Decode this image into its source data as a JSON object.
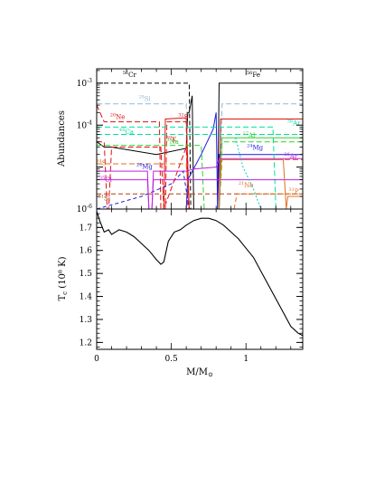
{
  "chart_data": [
    {
      "type": "line",
      "ylabel": "Abundances",
      "yscale": "log",
      "ylim": [
        1e-06,
        0.0022
      ],
      "xlim": [
        0,
        1.38
      ],
      "grid": false,
      "yticks": [
        {
          "v": 1e-06,
          "base": "10",
          "exp": "-6"
        },
        {
          "v": 1e-05,
          "base": "",
          "exp": ""
        },
        {
          "v": 0.0001,
          "base": "10",
          "exp": "-4"
        },
        {
          "v": 0.001,
          "base": "10",
          "exp": "-3"
        }
      ],
      "series": [
        {
          "name": "⁵⁶Cr",
          "color": "#000000",
          "dash": "5,3",
          "label": {
            "x": 0.22,
            "y": 0.0014,
            "mass": "56",
            "el": "Cr"
          },
          "x": [
            0,
            0.5,
            0.62,
            0.63,
            0.66,
            0.67,
            1.38
          ],
          "y": [
            0.001,
            0.001,
            0.001,
            1e-06,
            1e-06,
            1e-06,
            1e-06
          ]
        },
        {
          "name": "⁵⁶Fe",
          "color": "#000000",
          "dash": "",
          "label": {
            "x": 1.05,
            "y": 0.0014,
            "mass": "56",
            "el": "Fe"
          },
          "x": [
            0,
            0.05,
            0.1,
            0.4,
            0.6,
            0.61,
            0.62,
            0.64,
            0.65,
            0.8,
            0.81,
            0.82,
            1.38
          ],
          "y": [
            4e-05,
            3e-05,
            3e-05,
            2e-05,
            2.8e-05,
            0.0002,
            0.0002,
            0.0005,
            1e-06,
            1e-06,
            1e-06,
            0.001,
            0.001
          ]
        },
        {
          "name": "²⁸Si",
          "color": "#8fb8d6",
          "dash": "6,3",
          "label": {
            "x": 0.32,
            "y": 0.00038,
            "mass": "28",
            "el": "Si"
          },
          "x": [
            0,
            0.6,
            0.62,
            0.82,
            0.84,
            1.38
          ],
          "y": [
            0.00032,
            0.00032,
            1e-06,
            1e-06,
            0.00032,
            0.00032
          ]
        },
        {
          "name": "²⁰Ne",
          "color": "#e01010",
          "dash": "6,3",
          "label": {
            "x": 0.14,
            "y": 0.00014,
            "mass": "20",
            "el": "Ne"
          },
          "x": [
            0,
            0.05,
            0.1,
            0.42,
            0.43,
            0.46,
            0.47,
            0.6,
            0.61,
            1.38
          ],
          "y": [
            0.0003,
            0.00012,
            0.00012,
            0.00012,
            1e-06,
            1e-06,
            0.00012,
            0.00012,
            1e-06,
            1e-06
          ]
        },
        {
          "name": "³²S",
          "color": "#e01010",
          "dash": "",
          "label": {
            "x": 0.58,
            "y": 0.00014,
            "mass": "32",
            "el": "S"
          },
          "x": [
            0,
            0.45,
            0.46,
            0.6,
            0.62,
            0.82,
            0.83,
            1.38
          ],
          "y": [
            1e-06,
            1e-06,
            0.00014,
            0.00015,
            1e-06,
            1e-06,
            0.00014,
            0.00014
          ]
        },
        {
          "name": "²⁴Mg",
          "color": "#1a1ae6",
          "dash": "",
          "label": {
            "x": 1.06,
            "y": 2.6e-05,
            "mass": "24",
            "el": "Mg"
          },
          "x": [
            0,
            0.55,
            0.6,
            0.61,
            0.7,
            0.78,
            0.8,
            0.81,
            0.82,
            1.38
          ],
          "y": [
            1e-06,
            1e-06,
            1e-06,
            5e-06,
            2e-05,
            8e-05,
            0.0002,
            1e-06,
            2e-05,
            2e-05
          ]
        },
        {
          "name": "⁴⁸Ca",
          "color": "#00e0a0",
          "dash": "6,3",
          "label": {
            "x": 0.2,
            "y": 6.2e-05,
            "mass": "48",
            "el": "Ca"
          },
          "x": [
            0,
            1.38
          ],
          "y": [
            6e-05,
            6e-05
          ]
        },
        {
          "name": "³⁴S",
          "color": "#e07020",
          "dash": "6,3",
          "label": {
            "x": 0.03,
            "y": 1.1e-05,
            "mass": "34",
            "el": "S"
          },
          "x": [
            0,
            0.6,
            0.62,
            0.82,
            0.84,
            1.38
          ],
          "y": [
            1.2e-05,
            1.2e-05,
            1e-06,
            1e-06,
            1.5e-05,
            1.5e-05
          ]
        },
        {
          "name": "³⁸Ar",
          "color": "#00e0a0",
          "dash": "6,3",
          "label": {
            "x": 1.32,
            "y": 0.0001,
            "mass": "38",
            "el": "Ar"
          },
          "x": [
            0,
            1.18,
            1.2,
            1.38
          ],
          "y": [
            9e-05,
            9e-05,
            1e-06,
            1e-06
          ]
        },
        {
          "name": "²⁴Mg dashed",
          "color": "#1a1ae6",
          "dash": "4,3",
          "label": {
            "x": 0.32,
            "y": 9e-06,
            "mass": "24",
            "el": "Mg"
          },
          "x": [
            0,
            0.3,
            0.5,
            0.58,
            0.62
          ],
          "y": [
            1e-06,
            2e-06,
            4e-06,
            8e-06,
            1e-06
          ]
        },
        {
          "name": "³⁹K",
          "color": "#e01010",
          "dash": "6,3",
          "label": {
            "x": 0.5,
            "y": 4e-05,
            "mass": "39",
            "el": "K"
          },
          "x": [
            0,
            0.05,
            0.07,
            0.08,
            0.1,
            0.43,
            0.45,
            0.6,
            0.62
          ],
          "y": [
            4e-05,
            4e-05,
            1e-06,
            1e-06,
            3e-05,
            3e-05,
            1e-06,
            3e-05,
            1e-06
          ]
        },
        {
          "name": "²³Na",
          "color": "#30d030",
          "dash": "6,3",
          "label": {
            "x": 0.5,
            "y": 3.6e-05,
            "mass": "23",
            "el": "Na"
          },
          "x": [
            0,
            0.7,
            0.72,
            0.82,
            0.84,
            1.38
          ],
          "y": [
            3.3e-05,
            3.3e-05,
            1e-06,
            1e-06,
            4e-05,
            4e-05
          ]
        },
        {
          "name": "²⁷Al",
          "color": "#30d030",
          "dash": "",
          "label": {
            "x": 1.02,
            "y": 5e-05,
            "mass": "27",
            "el": "Al"
          },
          "x": [
            0,
            0.82,
            0.84,
            1.38
          ],
          "y": [
            1e-06,
            1e-06,
            5e-05,
            5e-05
          ]
        },
        {
          "name": "³⁶Ar",
          "color": "#c020e0",
          "dash": "",
          "label": {
            "x": 1.3,
            "y": 1.6e-05,
            "mass": "36",
            "el": "Ar"
          },
          "x": [
            0,
            0.34,
            0.35,
            0.37,
            0.38,
            0.6,
            0.65,
            0.8,
            0.82,
            1.38
          ],
          "y": [
            8e-06,
            8e-06,
            1e-06,
            1e-06,
            8e-06,
            8e-06,
            9e-06,
            1e-05,
            1.6e-05,
            1.6e-05
          ]
        },
        {
          "name": "³⁵Cl",
          "color": "#c020e0",
          "dash": "",
          "label": {
            "x": 0.06,
            "y": 4.4e-06,
            "mass": "35",
            "el": "Cl"
          },
          "x": [
            0,
            0.34,
            0.35,
            0.37,
            0.38,
            1.38
          ],
          "y": [
            5e-06,
            5e-06,
            1e-06,
            1e-06,
            5e-06,
            5e-06
          ]
        },
        {
          "name": "³¹Si",
          "color": "#b04010",
          "dash": "5,3",
          "label": {
            "x": 0.05,
            "y": 1.6e-06,
            "mass": "31",
            "el": "Si"
          },
          "x": [
            0,
            1.38
          ],
          "y": [
            2.3e-06,
            2.3e-06
          ]
        },
        {
          "name": "²¹Ne",
          "color": "#e07020",
          "dash": "5,3",
          "label": {
            "x": 1.0,
            "y": 3.3e-06,
            "mass": "21",
            "el": "Ne"
          },
          "x": [
            0,
            0.92,
            0.94,
            1.1,
            1.15,
            1.38
          ],
          "y": [
            1e-06,
            1e-06,
            2.3e-06,
            2.3e-06,
            2.3e-06,
            2.3e-06
          ]
        },
        {
          "name": "³¹P",
          "color": "#e07020",
          "dash": "",
          "label": {
            "x": 1.32,
            "y": 2.3e-06,
            "mass": "31",
            "el": "P"
          },
          "x": [
            0.82,
            0.83,
            1.25,
            1.27,
            1.28,
            1.38
          ],
          "y": [
            1e-06,
            1.5e-05,
            1.5e-05,
            1e-06,
            2e-06,
            2e-06
          ]
        },
        {
          "name": "cyan dotted",
          "color": "#00d0c0",
          "dash": "2,2",
          "label": null,
          "x": [
            0.93,
            0.98,
            1.05,
            1.1
          ],
          "y": [
            5e-05,
            1e-05,
            3e-06,
            1e-06
          ]
        }
      ]
    },
    {
      "type": "line",
      "xlabel": "M/M",
      "xlabel_sub": "⊙",
      "ylabel_main": "T",
      "ylabel_sub": "c",
      "ylabel_unit": " (10⁸ K)",
      "xlim": [
        0,
        1.38
      ],
      "ylim": [
        1.17,
        1.78
      ],
      "xticks": [
        {
          "v": 0,
          "label": "0"
        },
        {
          "v": 0.5,
          "label": "0.5"
        },
        {
          "v": 1,
          "label": "1"
        }
      ],
      "yticks": [
        {
          "v": 1.2,
          "label": "1.2"
        },
        {
          "v": 1.3,
          "label": "1.3"
        },
        {
          "v": 1.4,
          "label": "1.4"
        },
        {
          "v": 1.5,
          "label": "1.5"
        },
        {
          "v": 1.6,
          "label": "1.6"
        },
        {
          "v": 1.7,
          "label": "1.7"
        }
      ],
      "series": [
        {
          "name": "T_c",
          "color": "#000000",
          "x": [
            0,
            0.02,
            0.05,
            0.08,
            0.1,
            0.15,
            0.2,
            0.25,
            0.3,
            0.35,
            0.4,
            0.43,
            0.45,
            0.48,
            0.52,
            0.56,
            0.6,
            0.65,
            0.7,
            0.75,
            0.8,
            0.85,
            0.9,
            0.95,
            1.0,
            1.05,
            1.1,
            1.15,
            1.2,
            1.25,
            1.3,
            1.35,
            1.38
          ],
          "y": [
            1.77,
            1.73,
            1.68,
            1.69,
            1.67,
            1.69,
            1.68,
            1.66,
            1.63,
            1.6,
            1.56,
            1.54,
            1.55,
            1.64,
            1.68,
            1.69,
            1.71,
            1.73,
            1.74,
            1.74,
            1.73,
            1.71,
            1.68,
            1.65,
            1.61,
            1.57,
            1.51,
            1.45,
            1.39,
            1.33,
            1.27,
            1.24,
            1.23
          ]
        }
      ]
    }
  ]
}
